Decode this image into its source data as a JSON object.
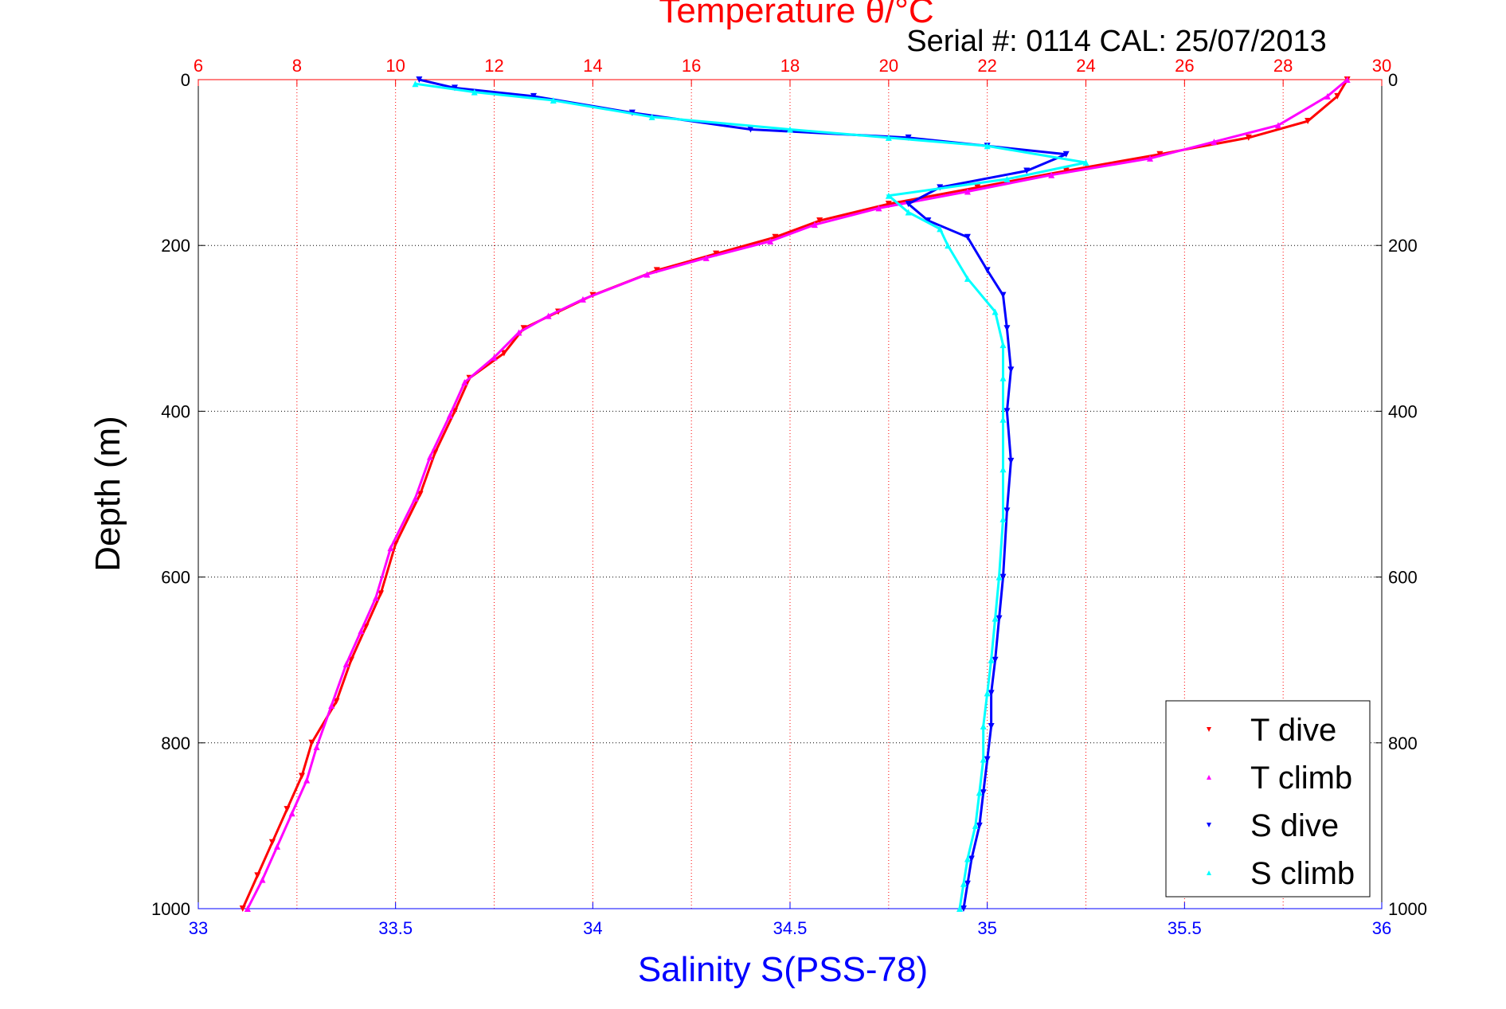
{
  "chart_data": {
    "type": "scatter",
    "title": "Temperature θ/°C",
    "subtitle": "Serial #: 0114  CAL: 25/07/2013",
    "xlabel_top": "Temperature θ/°C",
    "xlabel_bottom": "Salinity S(PSS-78)",
    "ylabel": "Depth (m)",
    "top_axis": {
      "lim": [
        6,
        30
      ],
      "ticks": [
        "6",
        "8",
        "10",
        "12",
        "14",
        "16",
        "18",
        "20",
        "22",
        "24",
        "26",
        "28",
        "30"
      ]
    },
    "bottom_axis": {
      "lim": [
        33,
        36
      ],
      "ticks": [
        "33",
        "33.5",
        "34",
        "34.5",
        "35",
        "35.5",
        "36"
      ]
    },
    "y_axis": {
      "lim": [
        0,
        1000
      ],
      "reversed": true,
      "ticks": [
        "0",
        "200",
        "400",
        "600",
        "800",
        "1000"
      ]
    },
    "grid": true,
    "legend_position": "bottom-right",
    "colors": {
      "temperature_axis": "#ff0000",
      "salinity_axis": "#0000ff",
      "grid": "#000000"
    },
    "series": [
      {
        "name": "T dive",
        "axis": "top",
        "color": "#ff0000",
        "marker": "triangle-down",
        "x": [
          29.3,
          29.1,
          28.5,
          27.3,
          25.5,
          23.6,
          21.8,
          20.0,
          18.6,
          17.7,
          16.5,
          15.3,
          14.0,
          13.3,
          12.6,
          12.2,
          11.5,
          11.2,
          10.8,
          10.5,
          10.0,
          9.7,
          9.4,
          9.1,
          8.8,
          8.3,
          8.1,
          7.8,
          7.5,
          7.2,
          6.9
        ],
        "y": [
          0,
          20,
          50,
          70,
          90,
          110,
          130,
          150,
          170,
          190,
          210,
          230,
          260,
          280,
          300,
          330,
          360,
          400,
          450,
          500,
          560,
          620,
          660,
          700,
          750,
          800,
          840,
          880,
          920,
          960,
          1000
        ]
      },
      {
        "name": "T climb",
        "axis": "top",
        "color": "#ff00ff",
        "marker": "triangle-up",
        "x": [
          29.3,
          28.9,
          27.9,
          26.6,
          25.3,
          23.3,
          21.6,
          19.8,
          18.5,
          17.6,
          16.3,
          15.1,
          13.8,
          13.1,
          12.5,
          12.0,
          11.4,
          11.1,
          10.7,
          10.4,
          9.9,
          9.6,
          9.3,
          9.0,
          8.7,
          8.4,
          8.2,
          7.9,
          7.6,
          7.3,
          7.0
        ],
        "y": [
          0,
          20,
          55,
          75,
          95,
          115,
          135,
          155,
          175,
          195,
          215,
          235,
          265,
          285,
          305,
          335,
          365,
          405,
          455,
          505,
          565,
          625,
          665,
          705,
          755,
          805,
          845,
          885,
          925,
          965,
          1000
        ]
      },
      {
        "name": "S dive",
        "axis": "bottom",
        "color": "#0000ff",
        "marker": "triangle-down",
        "x": [
          33.56,
          33.65,
          33.85,
          34.1,
          34.4,
          34.8,
          35.0,
          35.2,
          35.1,
          34.88,
          34.8,
          34.85,
          34.95,
          35.0,
          35.04,
          35.05,
          35.06,
          35.05,
          35.06,
          35.05,
          35.04,
          35.03,
          35.02,
          35.01,
          35.01,
          35.0,
          34.99,
          34.98,
          34.96,
          34.95,
          34.94
        ],
        "y": [
          0,
          10,
          20,
          40,
          60,
          70,
          80,
          90,
          110,
          130,
          150,
          170,
          190,
          230,
          260,
          300,
          350,
          400,
          460,
          520,
          600,
          650,
          700,
          740,
          780,
          820,
          860,
          900,
          940,
          970,
          1000
        ]
      },
      {
        "name": "S climb",
        "axis": "bottom",
        "color": "#00ffff",
        "marker": "triangle-up",
        "x": [
          33.55,
          33.7,
          33.9,
          34.15,
          34.5,
          34.75,
          35.0,
          35.25,
          35.05,
          34.75,
          34.8,
          34.88,
          34.9,
          34.95,
          35.02,
          35.04,
          35.04,
          35.04,
          35.04,
          35.04,
          35.03,
          35.02,
          35.01,
          35.0,
          34.99,
          34.99,
          34.98,
          34.97,
          34.95,
          34.94,
          34.93
        ],
        "y": [
          5,
          15,
          25,
          45,
          60,
          70,
          80,
          100,
          120,
          140,
          160,
          180,
          200,
          240,
          280,
          320,
          360,
          410,
          470,
          530,
          600,
          650,
          700,
          740,
          780,
          820,
          860,
          900,
          940,
          970,
          1000
        ]
      }
    ]
  }
}
